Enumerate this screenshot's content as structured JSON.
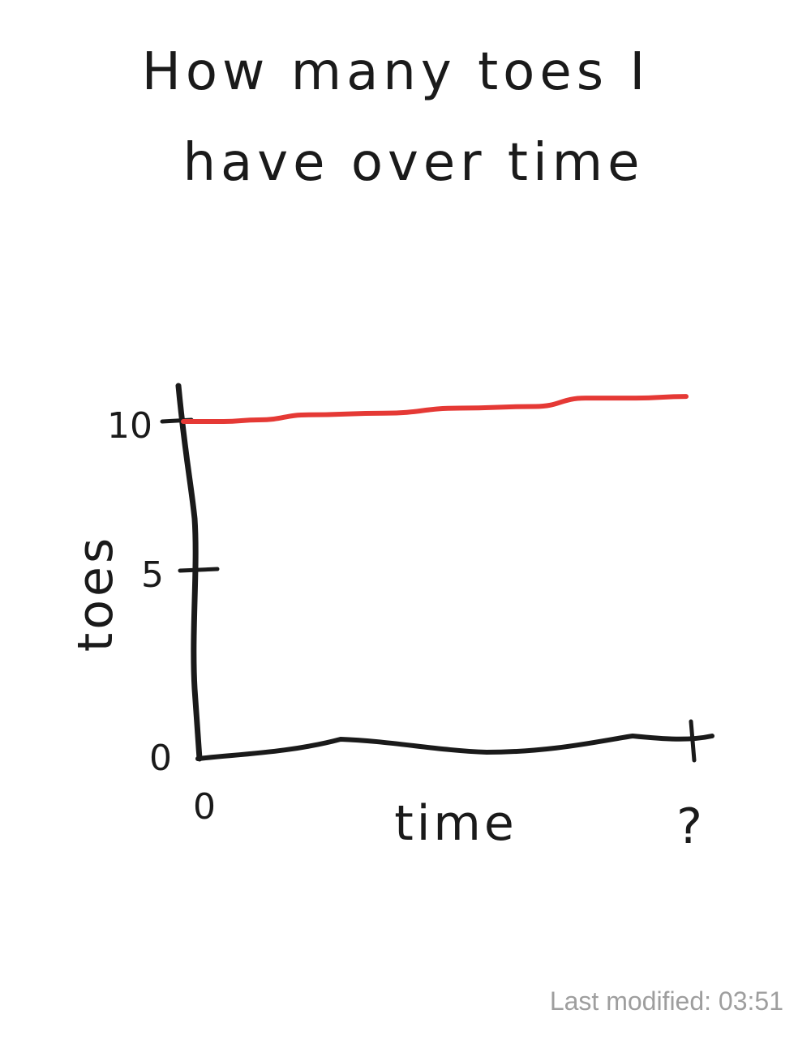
{
  "chart_data": {
    "type": "line",
    "title_lines": [
      "How many toes I",
      "have over time"
    ],
    "xlabel": "time",
    "ylabel": "toes",
    "x_ticks": [
      "0",
      "?"
    ],
    "y_ticks": [
      {
        "label": "0",
        "value": 0
      },
      {
        "label": "5",
        "value": 5
      },
      {
        "label": "10",
        "value": 10
      }
    ],
    "ylim": [
      0,
      10
    ],
    "xlim": [
      0,
      1
    ],
    "grid": false,
    "series": [
      {
        "color": "#e53935",
        "x": [
          0.0,
          0.08,
          0.15,
          0.25,
          0.4,
          0.55,
          0.7,
          0.8,
          0.9,
          1.0
        ],
        "y": [
          10.0,
          10.0,
          10.05,
          10.2,
          10.25,
          10.4,
          10.45,
          10.7,
          10.7,
          10.75
        ]
      }
    ]
  },
  "footer": {
    "last_modified": "Last modified: 03:51"
  }
}
